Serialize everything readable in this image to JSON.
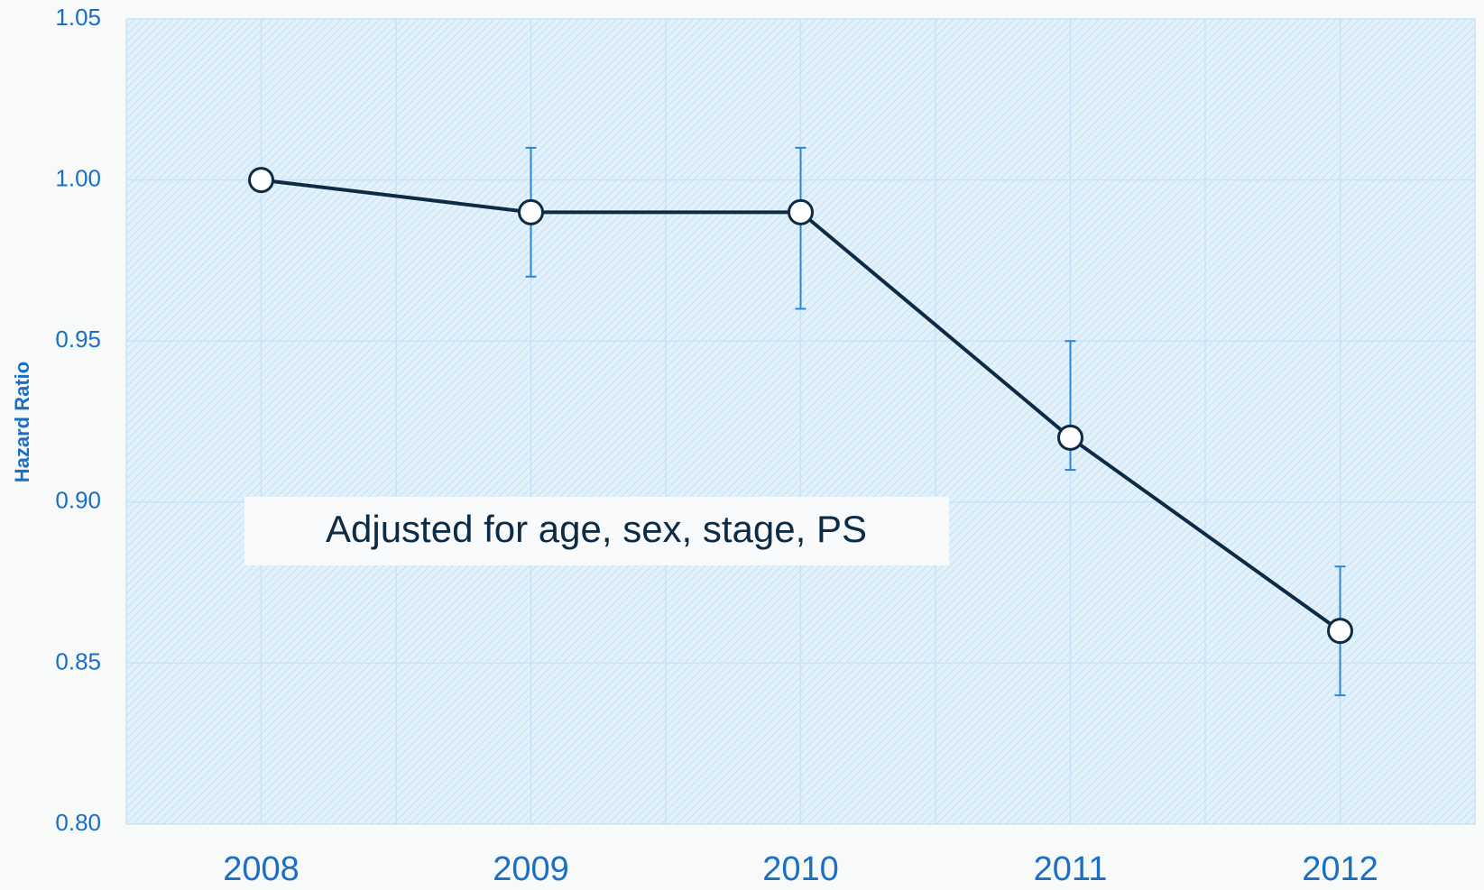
{
  "chart_data": {
    "type": "line",
    "y_label": "Hazard Ratio",
    "annotation": "Adjusted for age, sex, stage, PS",
    "categories": [
      "2008",
      "2009",
      "2010",
      "2011",
      "2012"
    ],
    "series": [
      {
        "name": "Hazard Ratio",
        "color": "#0d2b45",
        "values": [
          1.0,
          0.99,
          0.99,
          0.92,
          0.86
        ],
        "ci_lower": [
          null,
          0.97,
          0.96,
          0.91,
          0.84
        ],
        "ci_upper": [
          null,
          1.01,
          1.01,
          0.95,
          0.88
        ],
        "error_color": "#2a86d8"
      }
    ],
    "ylim": [
      0.8,
      1.05
    ],
    "yticks": [
      {
        "value": 0.8,
        "label": "0.80"
      },
      0.85,
      {
        "value": 0.9,
        "label": "0.90"
      },
      0.95,
      {
        "value": 1.0,
        "label": "1.00"
      },
      1.05
    ],
    "grid": true
  }
}
